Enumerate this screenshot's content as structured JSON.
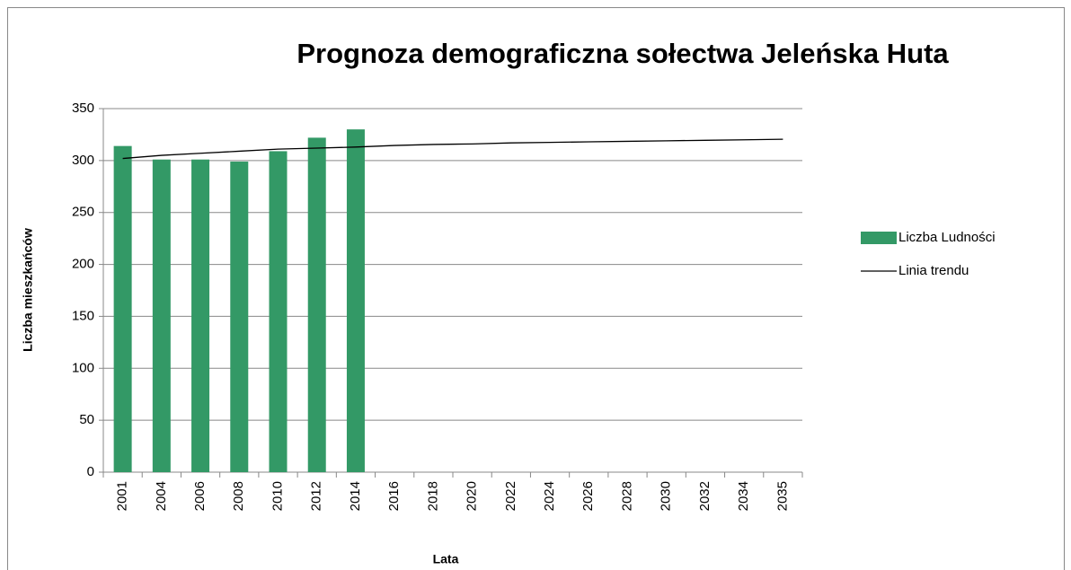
{
  "chart_data": {
    "type": "bar",
    "title": "Prognoza demograficzna sołectwa Jeleńska Huta",
    "x_label": "Lata",
    "y_label": "Liczba mieszkańców",
    "categories": [
      "2001",
      "2004",
      "2006",
      "2008",
      "2010",
      "2012",
      "2014",
      "2016",
      "2018",
      "2020",
      "2022",
      "2024",
      "2026",
      "2028",
      "2030",
      "2032",
      "2034",
      "2035"
    ],
    "series": [
      {
        "name": "Liczba Ludności",
        "color": "#339966",
        "values": [
          314,
          301,
          301,
          299,
          309,
          322,
          330,
          null,
          null,
          null,
          null,
          null,
          null,
          null,
          null,
          null,
          null,
          null
        ]
      },
      {
        "name": "Linia trendu",
        "type": "line",
        "color": "#000000",
        "values": [
          302,
          305,
          307,
          309,
          311,
          312,
          313,
          314.5,
          315.5,
          316,
          317,
          317.5,
          318,
          318.5,
          319,
          319.5,
          320,
          320.5
        ]
      }
    ],
    "ylim": [
      0,
      350
    ],
    "yticks": [
      0,
      50,
      100,
      150,
      200,
      250,
      300,
      350
    ],
    "grid": true,
    "legend": "right"
  }
}
